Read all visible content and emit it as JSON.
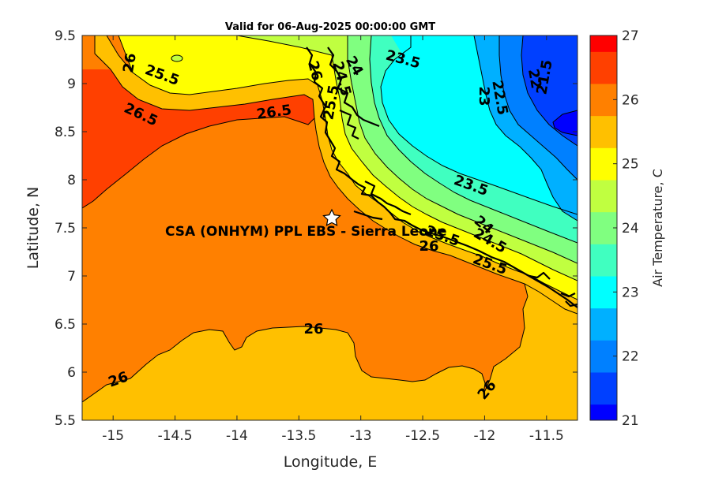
{
  "title": "Valid for 06-Aug-2025 00:00:00 GMT",
  "xlabel": "Longitude, E",
  "ylabel": "Latitude, N",
  "x_ticks": [
    "-15",
    "-14.5",
    "-14",
    "-13.5",
    "-13",
    "-12.5",
    "-12",
    "-11.5"
  ],
  "y_ticks": [
    "9.5",
    "9",
    "8.5",
    "8",
    "7.5",
    "7",
    "6.5",
    "6",
    "5.5"
  ],
  "colorbar": {
    "label": "Air Temperature, C",
    "ticks": [
      "27",
      "26",
      "25",
      "24",
      "23",
      "22",
      "21"
    ],
    "range": [
      21,
      27
    ],
    "colors": [
      "#0000ff",
      "#0040ff",
      "#0080ff",
      "#00b0ff",
      "#00ffff",
      "#40ffc0",
      "#80ff80",
      "#c0ff40",
      "#ffff00",
      "#ffc000",
      "#ff8000",
      "#ff4000",
      "#ff0000"
    ]
  },
  "site": {
    "label": "CSA (ONHYM) PPL EBS - Sierra Leone",
    "lon": -13.25,
    "lat": 7.6
  },
  "contour_labels": [
    {
      "text": "26"
    },
    {
      "text": "25.5"
    },
    {
      "text": "26.5"
    },
    {
      "text": "26.5"
    },
    {
      "text": "26"
    },
    {
      "text": "24.5"
    },
    {
      "text": "24"
    },
    {
      "text": "25.5"
    },
    {
      "text": "23.5"
    },
    {
      "text": "22.5"
    },
    {
      "text": "22"
    },
    {
      "text": "21.5"
    },
    {
      "text": "23"
    },
    {
      "text": "23.5"
    },
    {
      "text": "24"
    },
    {
      "text": "24.5"
    },
    {
      "text": "25.5"
    },
    {
      "text": "26"
    },
    {
      "text": "25.5"
    },
    {
      "text": "26"
    },
    {
      "text": "26"
    },
    {
      "text": "26"
    }
  ],
  "chart_data": {
    "type": "heatmap",
    "title": "Valid for 06-Aug-2025 00:00:00 GMT",
    "xlabel": "Longitude, E",
    "ylabel": "Latitude, N",
    "xlim": [
      -15.25,
      -11.25
    ],
    "ylim": [
      5.5,
      9.5
    ],
    "colorbar_label": "Air Temperature, C",
    "clim": [
      21,
      27
    ],
    "contour_levels": [
      21.5,
      22,
      22.5,
      23,
      23.5,
      24,
      24.5,
      25,
      25.5,
      26,
      26.5
    ],
    "annotations": [
      "CSA (ONHYM) PPL EBS - Sierra Leone"
    ]
  }
}
